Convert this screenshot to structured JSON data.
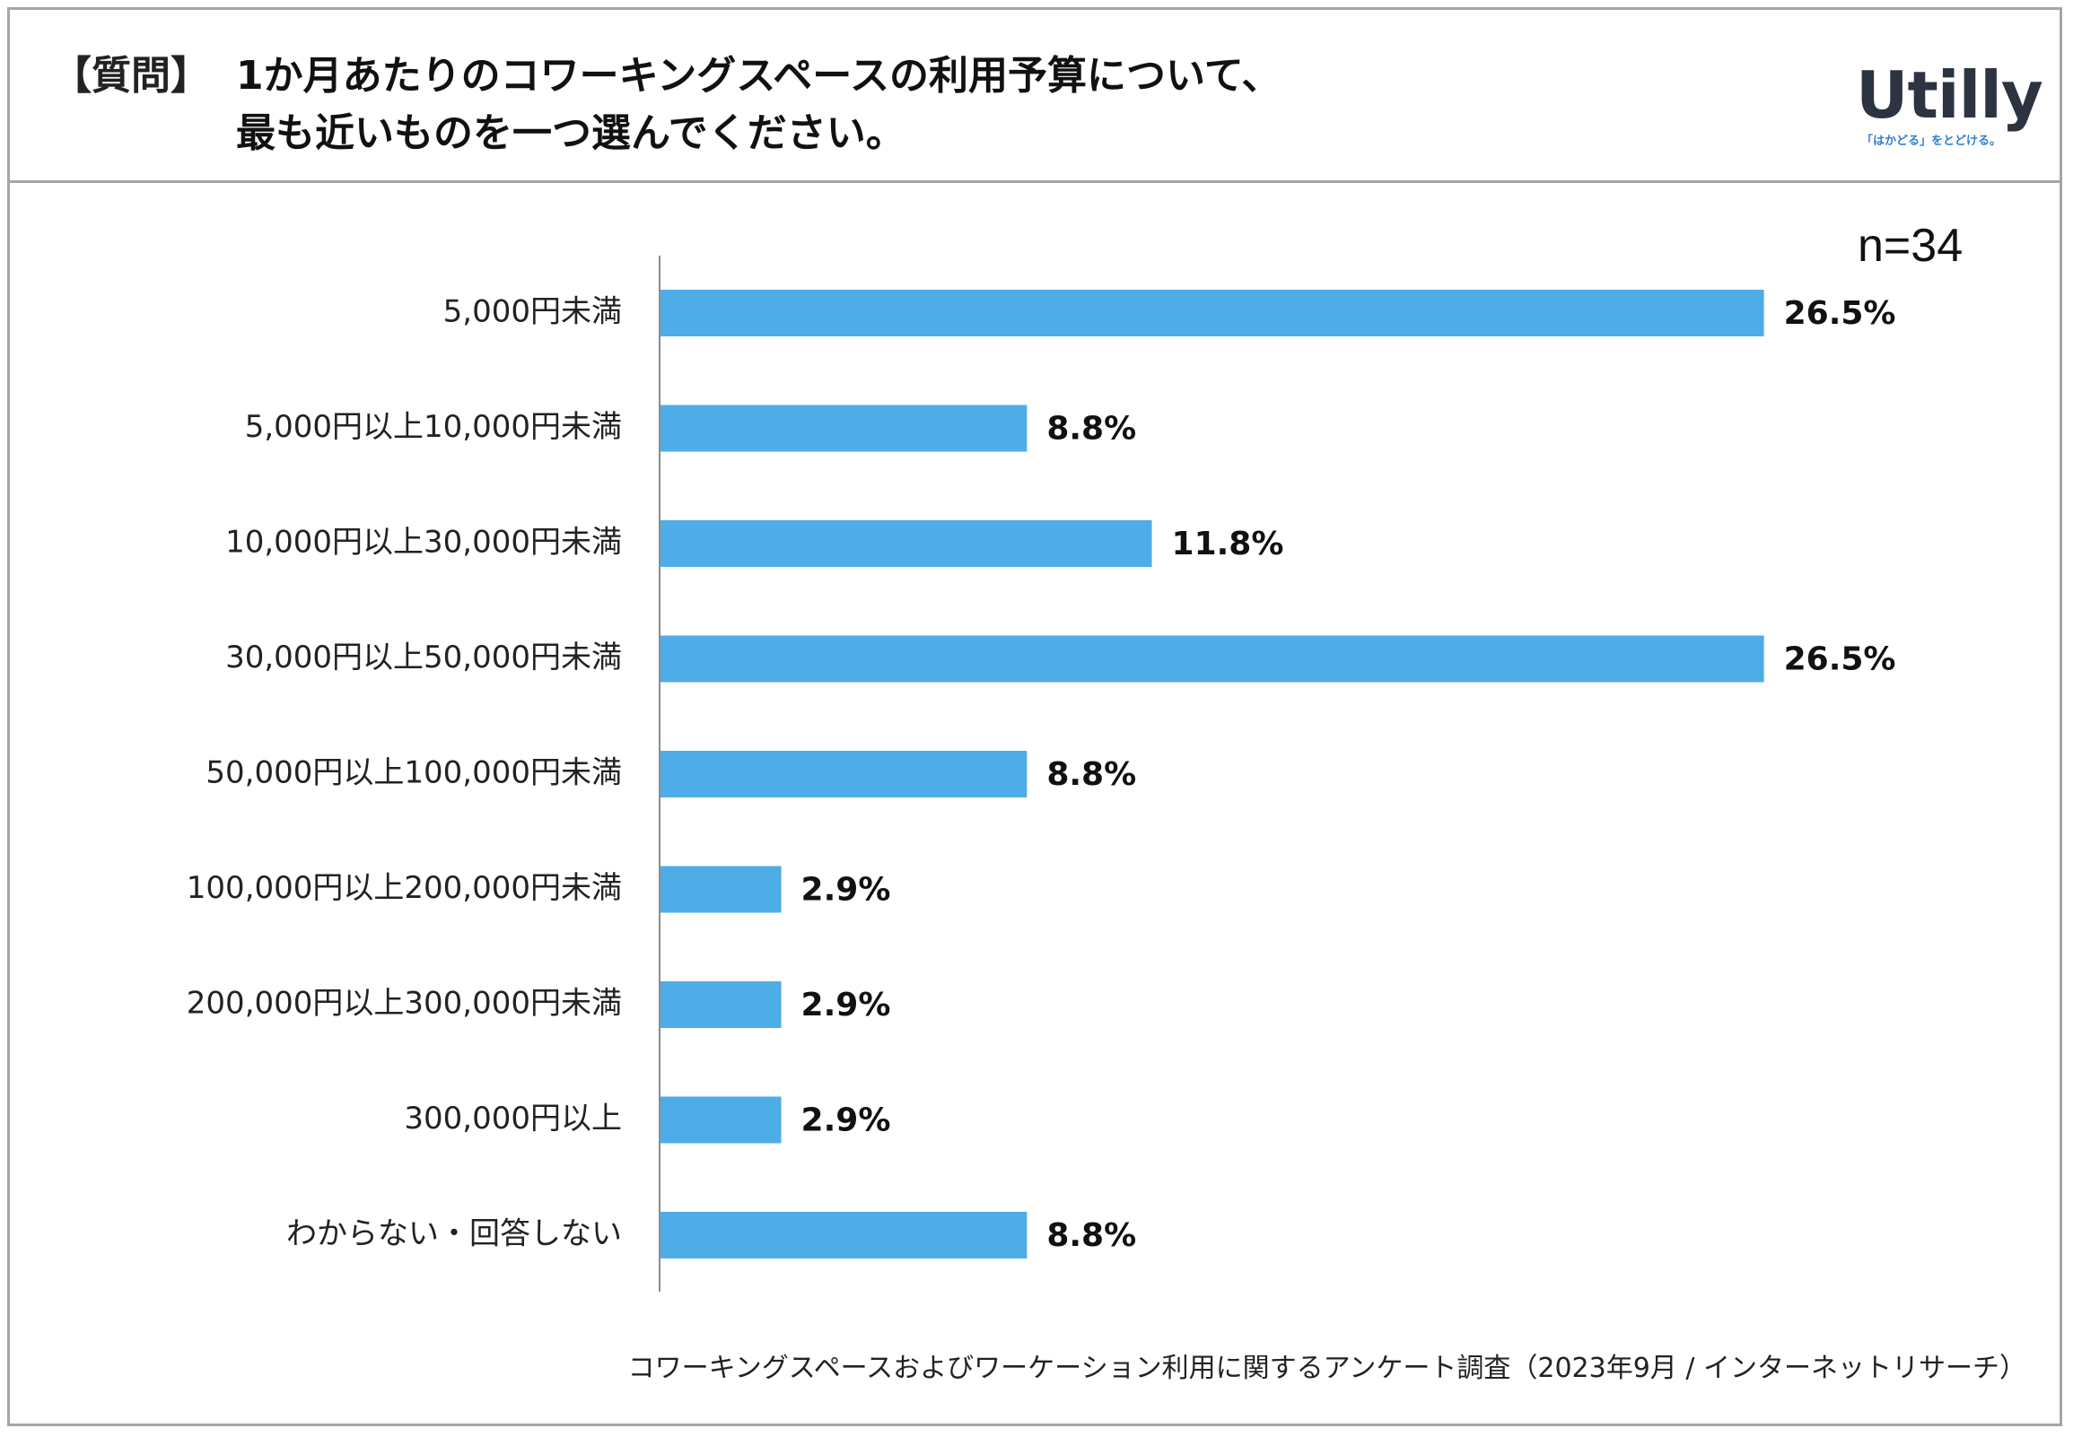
{
  "header": {
    "tag": "【質問】",
    "question_line1": "1か月あたりのコワーキングスペースの利用予算について、",
    "question_line2": "最も近いものを一つ選んでください。"
  },
  "logo": {
    "name": "Utilly",
    "tagline": "「はかどる」をとどける。",
    "color": "#2b3440",
    "tagline_color": "#2f7fd0"
  },
  "sample_size": "n=34",
  "bar_color": "#4eade6",
  "chart_data": {
    "type": "bar",
    "orientation": "horizontal",
    "title": "1か月あたりのコワーキングスペースの利用予算について、最も近いものを一つ選んでください。",
    "categories": [
      "5,000円未満",
      "5,000円以上10,000円未満",
      "10,000円以上30,000円未満",
      "30,000円以上50,000円未満",
      "50,000円以上100,000円未満",
      "100,000円以上200,000円未満",
      "200,000円以上300,000円未満",
      "300,000円以上",
      "わからない・回答しない"
    ],
    "values": [
      26.5,
      8.8,
      11.8,
      26.5,
      8.8,
      2.9,
      2.9,
      2.9,
      8.8
    ],
    "value_labels": [
      "26.5%",
      "8.8%",
      "11.8%",
      "26.5%",
      "8.8%",
      "2.9%",
      "2.9%",
      "2.9%",
      "8.8%"
    ],
    "xlim": [
      0,
      30
    ],
    "xlabel": "",
    "ylabel": "",
    "grid": false,
    "legend": "none"
  },
  "source": "コワーキングスペースおよびワーケーション利用に関するアンケート調査（2023年9月 / インターネットリサーチ）"
}
